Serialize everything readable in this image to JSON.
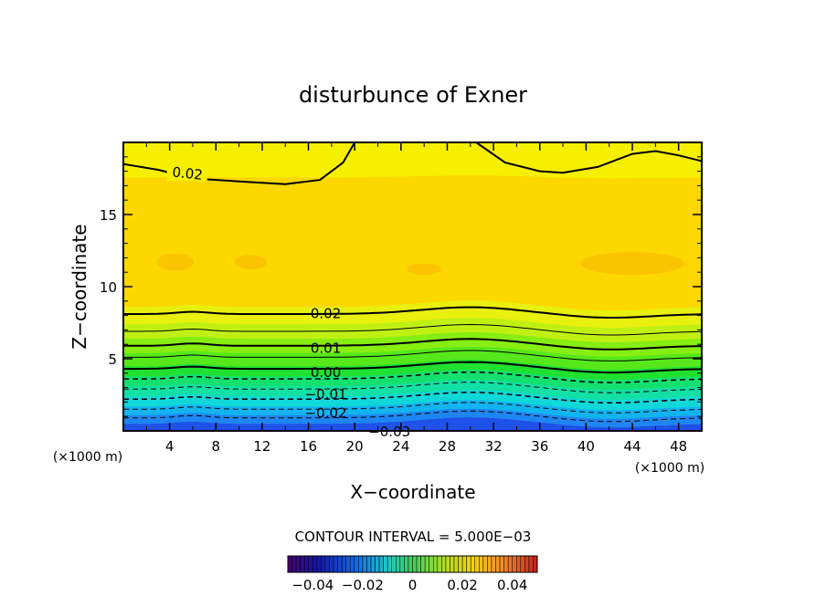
{
  "chart_data": {
    "type": "contour",
    "title": "disturbunce of Exner",
    "xlabel": "X−coordinate",
    "ylabel": "Z−coordinate",
    "x_unit": "(×1000 m)",
    "y_unit": "(×1000 m)",
    "xlim": [
      0,
      50
    ],
    "ylim": [
      0,
      20
    ],
    "x_ticks": [
      4,
      8,
      12,
      16,
      20,
      24,
      28,
      32,
      36,
      40,
      44,
      48
    ],
    "y_ticks": [
      5,
      10,
      15
    ],
    "contour_interval_text": "CONTOUR INTERVAL = 5.000E−03",
    "contour_labels": [
      "0.02",
      "0.02",
      "0.01",
      "0.00",
      "−0.01",
      "−0.02",
      "−0.03"
    ],
    "colorbar": {
      "min": -0.05,
      "max": 0.05,
      "ticks": [
        "−0.04",
        "−0.02",
        "0",
        "0.02",
        "0.04"
      ]
    },
    "bands": [
      {
        "z": [
          0.0,
          0.5
        ],
        "color": "#1f52e8"
      },
      {
        "z": [
          0.5,
          1.1
        ],
        "color": "#1e86f2"
      },
      {
        "z": [
          1.1,
          1.7
        ],
        "color": "#12b4f0"
      },
      {
        "z": [
          1.7,
          2.4
        ],
        "color": "#10d8d8"
      },
      {
        "z": [
          2.4,
          3.1
        ],
        "color": "#12e0a4"
      },
      {
        "z": [
          3.1,
          3.8
        ],
        "color": "#14e070"
      },
      {
        "z": [
          3.8,
          4.5
        ],
        "color": "#20e030"
      },
      {
        "z": [
          4.5,
          5.4
        ],
        "color": "#56e81a"
      },
      {
        "z": [
          5.4,
          6.4
        ],
        "color": "#86ee10"
      },
      {
        "z": [
          6.4,
          7.4
        ],
        "color": "#c0f012"
      },
      {
        "z": [
          7.4,
          8.6
        ],
        "color": "#e8f00e"
      },
      {
        "z": [
          8.6,
          17.6
        ],
        "color": "#fcd800"
      },
      {
        "z": [
          17.6,
          20.0
        ],
        "color": "#f6f000"
      }
    ]
  }
}
